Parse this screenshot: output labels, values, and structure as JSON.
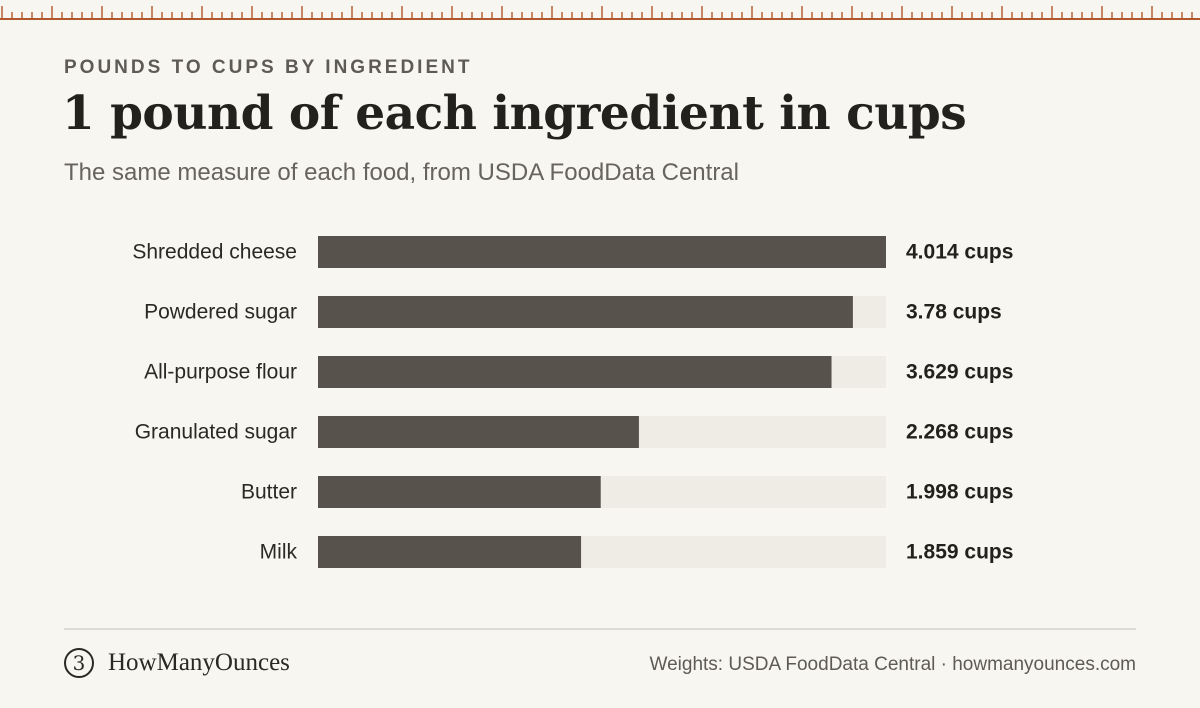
{
  "header": {
    "eyebrow": "POUNDS TO CUPS BY INGREDIENT",
    "title": "1 pound of each ingredient in cups",
    "subtitle": "The same measure of each food, from USDA FoodData Central"
  },
  "chart_data": {
    "type": "bar",
    "orientation": "horizontal",
    "categories": [
      "Shredded cheese",
      "Powdered sugar",
      "All-purpose flour",
      "Granulated sugar",
      "Butter",
      "Milk"
    ],
    "values": [
      4.014,
      3.78,
      3.629,
      2.268,
      1.998,
      1.859
    ],
    "value_labels": [
      "4.014 cups",
      "3.78 cups",
      "3.629 cups",
      "2.268 cups",
      "1.998 cups",
      "1.859 cups"
    ],
    "xlim": [
      0,
      4.014
    ],
    "grid": false,
    "colors": {
      "bar": "#57524c",
      "track": "#efece5"
    }
  },
  "footer": {
    "logo_mark": "3",
    "brand": "HowManyOunces",
    "source": "Weights: USDA FoodData Central · howmanyounces.com"
  },
  "colors": {
    "ruler": "#b2572b",
    "background": "#f8f6f1"
  }
}
